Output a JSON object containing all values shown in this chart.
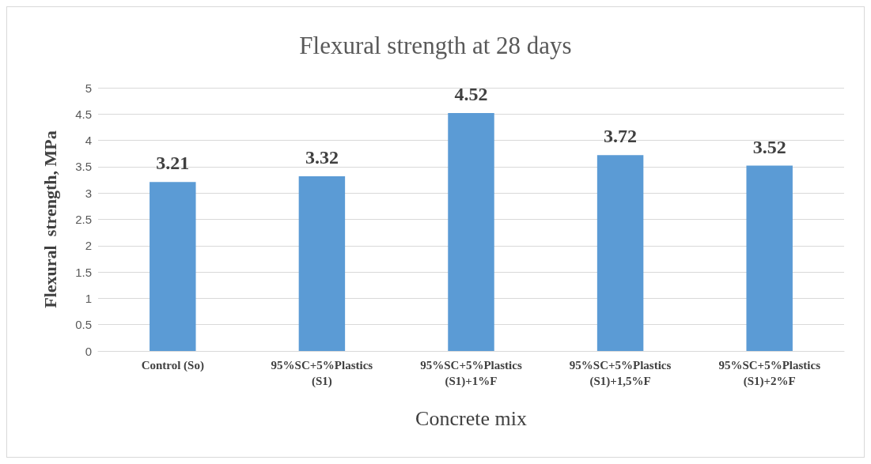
{
  "chart_data": {
    "type": "bar",
    "title": "Flexural strength at 28 days",
    "xlabel": "Concrete mix",
    "ylabel": "Flexural  strength, MPa",
    "categories": [
      "Control (So)",
      "95%SC+5%Plastics (S1)",
      "95%SC+5%Plastics (S1)+1%F",
      "95%SC+5%Plastics (S1)+1,5%F",
      "95%SC+5%Plastics (S1)+2%F"
    ],
    "values": [
      3.21,
      3.32,
      4.52,
      3.72,
      3.52
    ],
    "color": "#5b9bd5",
    "ylim": [
      0,
      5
    ],
    "yticks": [
      0,
      0.5,
      1,
      1.5,
      2,
      2.5,
      3,
      3.5,
      4,
      4.5,
      5
    ],
    "grid": "y",
    "data_labels": true
  }
}
